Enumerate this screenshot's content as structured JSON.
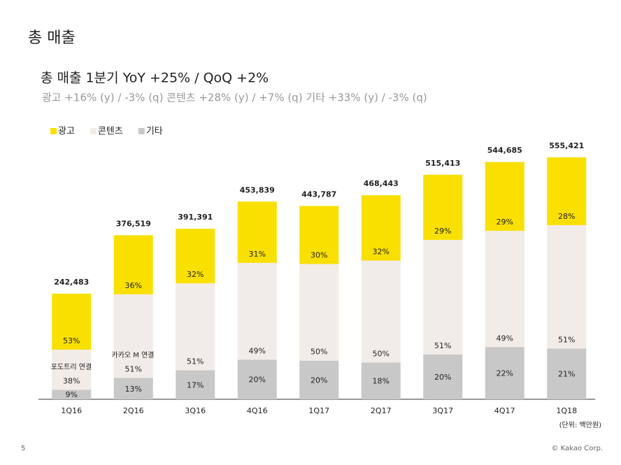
{
  "page_title": "총 매출",
  "chart_data": {
    "type": "stacked-bar",
    "title": "총 매출 1분기 YoY +25% / QoQ +2%",
    "subtitle": "광고 +16% (y) / -3% (q)  콘텐츠 +28% (y) / +7% (q)  기타 +33% (y) / -3% (q)",
    "categories": [
      "1Q16",
      "2Q16",
      "3Q16",
      "4Q16",
      "1Q17",
      "2Q17",
      "3Q17",
      "4Q17",
      "1Q18"
    ],
    "series": [
      {
        "name": "광고",
        "color": "#f9e000",
        "values": [
          53,
          36,
          32,
          31,
          30,
          32,
          29,
          29,
          28
        ],
        "value_labels": [
          "53%",
          "36%",
          "32%",
          "31%",
          "30%",
          "32%",
          "29%",
          "29%",
          "28%"
        ]
      },
      {
        "name": "콘텐츠",
        "color": "#f2ece8",
        "values": [
          38,
          51,
          51,
          49,
          50,
          50,
          51,
          49,
          51
        ],
        "value_labels": [
          "38%",
          "51%",
          "51%",
          "49%",
          "50%",
          "50%",
          "51%",
          "49%",
          "51%"
        ]
      },
      {
        "name": "기타",
        "color": "#c8c8c8",
        "values": [
          9,
          13,
          17,
          20,
          20,
          18,
          20,
          22,
          21
        ],
        "value_labels": [
          "9%",
          "13%",
          "17%",
          "20%",
          "20%",
          "18%",
          "20%",
          "22%",
          "21%"
        ]
      }
    ],
    "totals": {
      "values": [
        242483,
        376519,
        391391,
        453839,
        443787,
        468443,
        515413,
        544685,
        555421
      ],
      "value_labels": [
        "242,483",
        "376,519",
        "391,391",
        "453,839",
        "443,787",
        "468,443",
        "515,413",
        "544,685",
        "555,421"
      ]
    },
    "annotations": [
      "포도트리 연결",
      "카카오 M 연결"
    ],
    "unit_note": "(단위: 백만원)"
  },
  "footer": {
    "page_number": "5",
    "copyright": "© Kakao Corp."
  }
}
